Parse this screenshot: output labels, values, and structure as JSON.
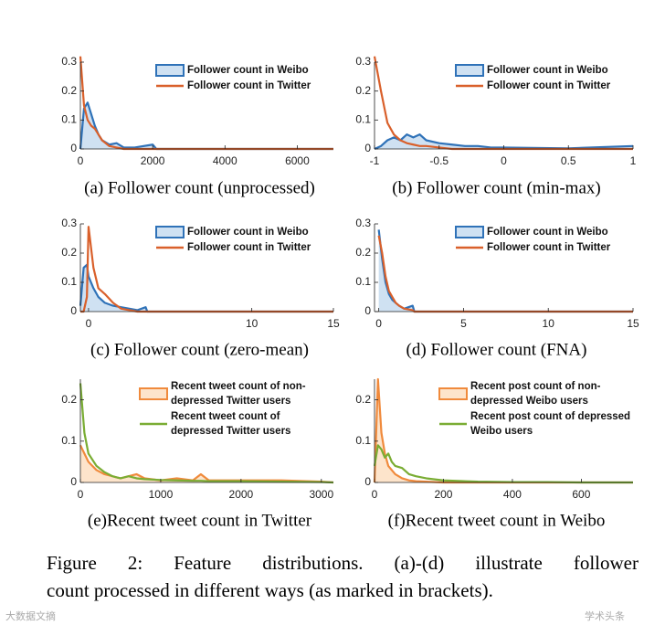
{
  "chart_data": [
    {
      "type": "line",
      "caption": "(a) Follower count (unprocessed)",
      "x": [
        0,
        100,
        200,
        300,
        400,
        500,
        600,
        800,
        1000,
        1200,
        1500,
        2000,
        2100,
        3000,
        5000,
        7000
      ],
      "xlim": [
        0,
        7000
      ],
      "xticks": [
        0,
        2000,
        4000,
        6000
      ],
      "ylim": [
        0,
        0.3
      ],
      "yticks": [
        0,
        0.1,
        0.2,
        0.3
      ],
      "series": [
        {
          "name": "Follower count in Weibo",
          "color": "#2f72b8",
          "fill": "#cfe1f2",
          "values": [
            0,
            0.14,
            0.16,
            0.12,
            0.08,
            0.05,
            0.03,
            0.015,
            0.02,
            0.005,
            0.005,
            0.015,
            0,
            0,
            0,
            0
          ]
        },
        {
          "name": "Follower count in Twitter",
          "color": "#d9602b",
          "values": [
            0.32,
            0.15,
            0.1,
            0.08,
            0.07,
            0.05,
            0.03,
            0.01,
            0.005,
            0,
            0,
            0,
            0,
            0,
            0,
            0
          ]
        }
      ]
    },
    {
      "type": "line",
      "caption": "(b)  Follower count (min-max)",
      "x": [
        -1,
        -0.95,
        -0.9,
        -0.85,
        -0.8,
        -0.75,
        -0.7,
        -0.65,
        -0.6,
        -0.5,
        -0.4,
        -0.3,
        -0.2,
        -0.1,
        0,
        0.5,
        1
      ],
      "xlim": [
        -1,
        1
      ],
      "xticks": [
        -1,
        -0.5,
        0,
        0.5,
        1
      ],
      "ylim": [
        0,
        0.3
      ],
      "yticks": [
        0,
        0.1,
        0.2,
        0.3
      ],
      "series": [
        {
          "name": "Follower count in Weibo",
          "color": "#2f72b8",
          "fill": "#cfe1f2",
          "values": [
            0,
            0.01,
            0.03,
            0.04,
            0.03,
            0.05,
            0.04,
            0.05,
            0.03,
            0.02,
            0.015,
            0.01,
            0.01,
            0.005,
            0.005,
            0.002,
            0.01
          ]
        },
        {
          "name": "Follower count in Twitter",
          "color": "#d9602b",
          "values": [
            0.32,
            0.2,
            0.09,
            0.05,
            0.03,
            0.02,
            0.015,
            0.01,
            0.01,
            0.005,
            0,
            0,
            0,
            0,
            0,
            0,
            0
          ]
        }
      ]
    },
    {
      "type": "line",
      "caption": "(c) Follower count (zero-mean)",
      "x": [
        -0.5,
        -0.3,
        -0.1,
        0,
        0.3,
        0.6,
        1,
        1.5,
        2,
        2.5,
        3,
        3.5,
        3.6,
        5,
        10,
        15
      ],
      "xlim": [
        -0.5,
        15
      ],
      "xticks": [
        0,
        10,
        15
      ],
      "ylim": [
        0,
        0.3
      ],
      "yticks": [
        0,
        0.1,
        0.2,
        0.3
      ],
      "series": [
        {
          "name": "Follower count in Weibo",
          "color": "#2f72b8",
          "fill": "#cfe1f2",
          "values": [
            0.02,
            0.15,
            0.16,
            0.12,
            0.08,
            0.05,
            0.03,
            0.02,
            0.015,
            0.01,
            0.005,
            0.015,
            0,
            0,
            0,
            0
          ]
        },
        {
          "name": "Follower count in Twitter",
          "color": "#d9602b",
          "values": [
            0,
            0,
            0.05,
            0.29,
            0.15,
            0.08,
            0.06,
            0.03,
            0.01,
            0.005,
            0,
            0,
            0,
            0,
            0,
            0
          ]
        }
      ]
    },
    {
      "type": "line",
      "caption": "(d) Follower count (FNA)",
      "x": [
        0,
        0.2,
        0.4,
        0.6,
        0.8,
        1,
        1.2,
        1.5,
        2,
        2.1,
        3,
        5,
        10,
        15
      ],
      "xlim": [
        -0.25,
        15
      ],
      "xticks": [
        0,
        5,
        10,
        15
      ],
      "ylim": [
        0,
        0.3
      ],
      "yticks": [
        0,
        0.1,
        0.2,
        0.3
      ],
      "series": [
        {
          "name": "Follower count in Weibo",
          "color": "#2f72b8",
          "fill": "#cfe1f2",
          "values": [
            0.28,
            0.18,
            0.1,
            0.06,
            0.04,
            0.03,
            0.02,
            0.01,
            0.02,
            0,
            0,
            0,
            0,
            0
          ]
        },
        {
          "name": "Follower count in Twitter",
          "color": "#d9602b",
          "values": [
            0.26,
            0.2,
            0.12,
            0.07,
            0.05,
            0.03,
            0.02,
            0.01,
            0.005,
            0,
            0,
            0,
            0,
            0
          ]
        }
      ]
    },
    {
      "type": "line",
      "caption": "(e)Recent tweet count in Twitter",
      "x": [
        0,
        50,
        100,
        200,
        300,
        400,
        500,
        600,
        700,
        800,
        1000,
        1200,
        1400,
        1500,
        1600,
        2000,
        2500,
        3000,
        3150
      ],
      "xlim": [
        0,
        3150
      ],
      "xticks": [
        0,
        1000,
        2000,
        3000
      ],
      "ylim": [
        0,
        0.25
      ],
      "yticks": [
        0,
        0.1,
        0.2
      ],
      "series": [
        {
          "name": "Recent tweet count of non-depressed Twitter users",
          "color": "#f08a3c",
          "fill": "#fde4cb",
          "values": [
            0.09,
            0.07,
            0.05,
            0.03,
            0.02,
            0.015,
            0.01,
            0.015,
            0.02,
            0.01,
            0.005,
            0.01,
            0.005,
            0.02,
            0.005,
            0.005,
            0.005,
            0.002,
            0
          ]
        },
        {
          "name": "Recent tweet count of depressed Twitter users",
          "color": "#7aad34",
          "values": [
            0.24,
            0.12,
            0.07,
            0.04,
            0.025,
            0.015,
            0.01,
            0.015,
            0.01,
            0.008,
            0.006,
            0.005,
            0.004,
            0.004,
            0.003,
            0.003,
            0.002,
            0.001,
            0
          ]
        }
      ]
    },
    {
      "type": "line",
      "caption": "(f)Recent tweet count in Weibo",
      "x": [
        0,
        10,
        20,
        30,
        40,
        50,
        60,
        80,
        100,
        120,
        150,
        200,
        300,
        400,
        500,
        600,
        750
      ],
      "xlim": [
        0,
        750
      ],
      "xticks": [
        0,
        200,
        400,
        600
      ],
      "ylim": [
        0,
        0.25
      ],
      "yticks": [
        0,
        0.1,
        0.2
      ],
      "series": [
        {
          "name": "Recent post count of non-depressed Weibo users",
          "color": "#f08a3c",
          "fill": "#fde4cb",
          "values": [
            0,
            0.25,
            0.12,
            0.07,
            0.04,
            0.03,
            0.02,
            0.01,
            0.005,
            0.003,
            0.002,
            0,
            0,
            0,
            0,
            0,
            0
          ]
        },
        {
          "name": "Recent post count of depressed Weibo users",
          "color": "#7aad34",
          "values": [
            0.04,
            0.09,
            0.08,
            0.06,
            0.07,
            0.05,
            0.04,
            0.035,
            0.02,
            0.015,
            0.01,
            0.005,
            0.002,
            0.001,
            0.001,
            0,
            0
          ]
        }
      ]
    }
  ],
  "figure_caption": [
    "Figure 2: Feature distributions. (a)-(d) illustrate follower",
    "count processed in different ways (as marked in brackets)."
  ],
  "watermarks": [
    "大数据文摘",
    "学术头条"
  ]
}
